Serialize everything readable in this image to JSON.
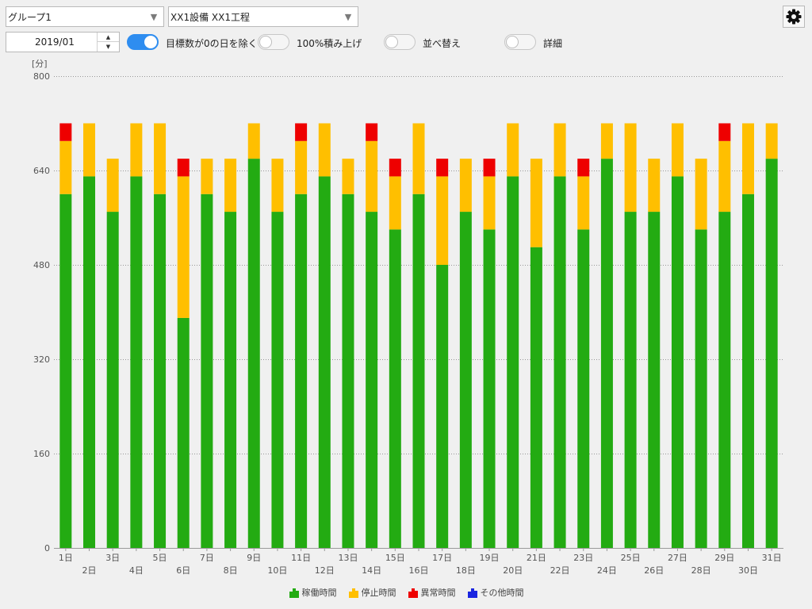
{
  "toolbar": {
    "group_select": "グループ1",
    "equipment_select": "XX1設備 XX1工程",
    "month": "2019/01",
    "toggles": [
      {
        "label": "目標数が0の日を除く",
        "on": true
      },
      {
        "label": "100%積み上げ",
        "on": false
      },
      {
        "label": "並べ替え",
        "on": false
      },
      {
        "label": "詳細",
        "on": false
      }
    ]
  },
  "icons": {
    "select_arrow": "chevron-down-icon",
    "settings": "gear-icon",
    "spin_up": "triangle-up-icon",
    "spin_down": "triangle-down-icon"
  },
  "colors": {
    "running": "#23ab12",
    "stopped": "#ffbf00",
    "abnormal": "#ee0000",
    "other": "#1a25e0",
    "toggle_on": "#2e8df0"
  },
  "chart_data": {
    "type": "bar",
    "stacked": true,
    "ylabel": "[分]",
    "ylim": [
      0,
      800
    ],
    "yticks": [
      0,
      160,
      320,
      480,
      640,
      800
    ],
    "grid": true,
    "legend_position": "bottom",
    "categories": [
      "1日",
      "2日",
      "3日",
      "4日",
      "5日",
      "6日",
      "7日",
      "8日",
      "9日",
      "10日",
      "11日",
      "12日",
      "13日",
      "14日",
      "15日",
      "16日",
      "17日",
      "18日",
      "19日",
      "20日",
      "21日",
      "22日",
      "23日",
      "24日",
      "25日",
      "26日",
      "27日",
      "28日",
      "29日",
      "30日",
      "31日"
    ],
    "series": [
      {
        "name": "稼働時間",
        "color": "#23ab12",
        "values": [
          600,
          630,
          570,
          630,
          600,
          390,
          600,
          570,
          660,
          570,
          600,
          630,
          600,
          570,
          540,
          600,
          480,
          570,
          540,
          630,
          510,
          630,
          540,
          660,
          570,
          570,
          630,
          540,
          570,
          600,
          660
        ]
      },
      {
        "name": "停止時間",
        "color": "#ffbf00",
        "values": [
          90,
          90,
          90,
          90,
          120,
          240,
          60,
          90,
          60,
          90,
          90,
          90,
          60,
          120,
          90,
          120,
          150,
          90,
          90,
          90,
          150,
          90,
          90,
          60,
          150,
          90,
          90,
          120,
          120,
          120,
          60
        ]
      },
      {
        "name": "異常時間",
        "color": "#ee0000",
        "values": [
          30,
          0,
          0,
          0,
          0,
          30,
          0,
          0,
          0,
          0,
          30,
          0,
          0,
          30,
          30,
          0,
          30,
          0,
          30,
          0,
          0,
          0,
          30,
          0,
          0,
          0,
          0,
          0,
          30,
          0,
          0
        ]
      },
      {
        "name": "その他時間",
        "color": "#1a25e0",
        "values": [
          0,
          0,
          0,
          0,
          0,
          0,
          0,
          0,
          0,
          0,
          0,
          0,
          0,
          0,
          0,
          0,
          0,
          0,
          0,
          0,
          0,
          0,
          0,
          0,
          0,
          0,
          0,
          0,
          0,
          0,
          0
        ]
      }
    ]
  }
}
